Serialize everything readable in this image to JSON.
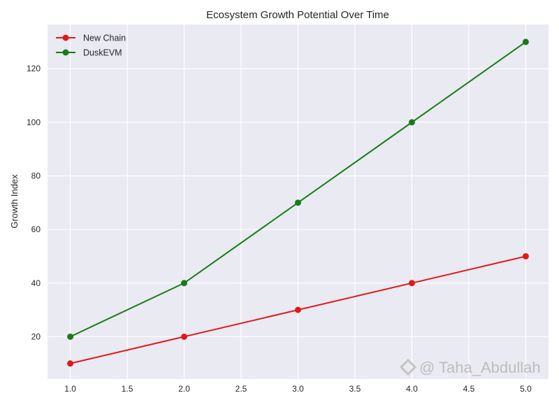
{
  "chart_data": {
    "type": "line",
    "title": "Ecosystem Growth Potential Over Time",
    "xlabel": "",
    "ylabel": "Growth Index",
    "x": [
      1,
      2,
      3,
      4,
      5
    ],
    "xlim": [
      0.8,
      5.2
    ],
    "ylim": [
      4.2,
      136.5
    ],
    "xticks": [
      "1.0",
      "1.5",
      "2.0",
      "2.5",
      "3.0",
      "3.5",
      "4.0",
      "4.5",
      "5.0"
    ],
    "yticks": [
      "20",
      "40",
      "60",
      "80",
      "100",
      "120"
    ],
    "grid": true,
    "legend": "top-left",
    "series": [
      {
        "name": "New Chain",
        "values": [
          10,
          20,
          30,
          40,
          50
        ],
        "color": "#e01a1a",
        "marker": "circle"
      },
      {
        "name": "DuskEVM",
        "values": [
          20,
          40,
          70,
          100,
          130
        ],
        "color": "#1a7a1a",
        "marker": "circle"
      }
    ],
    "background": "#eaeaf2"
  },
  "watermark": "@ Taha_Abdullah"
}
